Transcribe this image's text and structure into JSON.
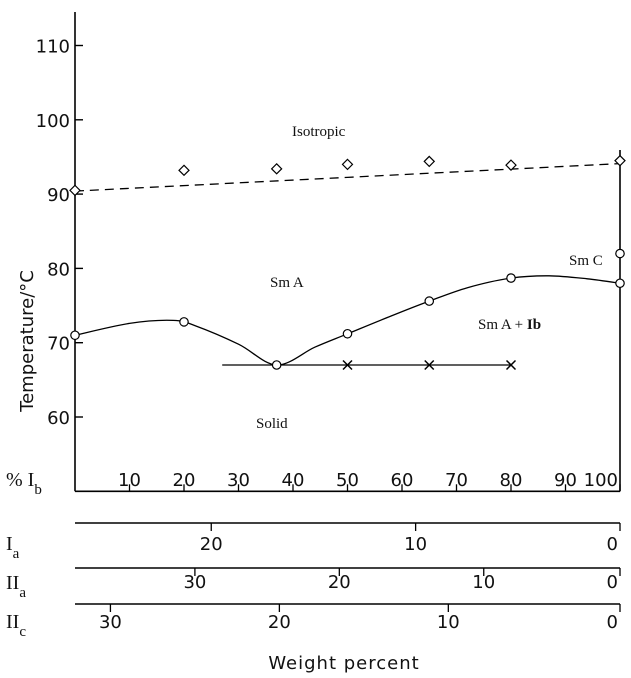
{
  "chart_data": {
    "type": "scatter",
    "xlabel": "Weight percent",
    "ylabel": "Temperature/°C",
    "xlim": [
      0,
      100
    ],
    "ylim": [
      50,
      115
    ],
    "y_ticks": [
      60,
      70,
      80,
      90,
      100,
      110
    ],
    "series": [
      {
        "marker": "diamond",
        "line": "dashed",
        "points": [
          [
            0,
            90.5
          ],
          [
            20,
            93.2
          ],
          [
            37,
            93.4
          ],
          [
            50,
            94.0
          ],
          [
            65,
            94.4
          ],
          [
            80,
            93.9
          ],
          [
            100,
            94.5
          ]
        ],
        "curve": [
          [
            0,
            90.4
          ],
          [
            100,
            94.1
          ]
        ]
      },
      {
        "marker": "circle",
        "line": "solid",
        "points": [
          [
            0,
            71.0
          ],
          [
            20,
            72.8
          ],
          [
            37,
            67.0
          ],
          [
            50,
            71.2
          ],
          [
            65,
            75.6
          ],
          [
            80,
            78.7
          ],
          [
            100,
            78.0
          ]
        ],
        "curve": [
          [
            0,
            71.0
          ],
          [
            10,
            72.6
          ],
          [
            18,
            73.0
          ],
          [
            22,
            72.3
          ],
          [
            30,
            69.8
          ],
          [
            37,
            67.0
          ],
          [
            44,
            69.4
          ],
          [
            50,
            71.2
          ],
          [
            58,
            73.6
          ],
          [
            65,
            75.6
          ],
          [
            72,
            77.4
          ],
          [
            80,
            78.7
          ],
          [
            87,
            79.0
          ],
          [
            94,
            78.6
          ],
          [
            100,
            78.0
          ]
        ]
      },
      {
        "marker": "circle",
        "line": "none",
        "points": [
          [
            100,
            82.0
          ]
        ]
      },
      {
        "marker": "cross",
        "line": "solid",
        "points": [
          [
            50,
            67.0
          ],
          [
            65,
            67.0
          ],
          [
            80,
            67.0
          ]
        ],
        "curve": [
          [
            27,
            67.0
          ],
          [
            80,
            67.0
          ]
        ]
      }
    ],
    "region_labels": {
      "isotropic": "Isotropic",
      "sma": "Sm A",
      "smc": "Sm C",
      "sma_ib_prefix": "Sm A + ",
      "sma_ib_bold": "Ib",
      "solid": "Solid"
    },
    "secondary_axes": [
      {
        "name_main": "%",
        "name_letter": "I",
        "name_sub": "b",
        "ticks": [
          [
            10,
            "10"
          ],
          [
            20,
            "20"
          ],
          [
            30,
            "30"
          ],
          [
            40,
            "40"
          ],
          [
            50,
            "50"
          ],
          [
            60,
            "60"
          ],
          [
            70,
            "70"
          ],
          [
            80,
            "80"
          ],
          [
            90,
            "90"
          ],
          [
            100,
            "100"
          ]
        ]
      },
      {
        "name_main": "",
        "name_letter": "I",
        "name_sub": "a",
        "ticks": [
          [
            25,
            "20"
          ],
          [
            62.5,
            "10"
          ],
          [
            100,
            "0"
          ]
        ]
      },
      {
        "name_main": "",
        "name_letter": "II",
        "name_sub": "a",
        "ticks": [
          [
            22,
            "30"
          ],
          [
            48.5,
            "20"
          ],
          [
            75,
            "10"
          ],
          [
            100,
            "0"
          ]
        ]
      },
      {
        "name_main": "",
        "name_letter": "II",
        "name_sub": "c",
        "ticks": [
          [
            6.5,
            "30"
          ],
          [
            37.5,
            "20"
          ],
          [
            68.5,
            "10"
          ],
          [
            100,
            "0"
          ]
        ]
      }
    ]
  }
}
